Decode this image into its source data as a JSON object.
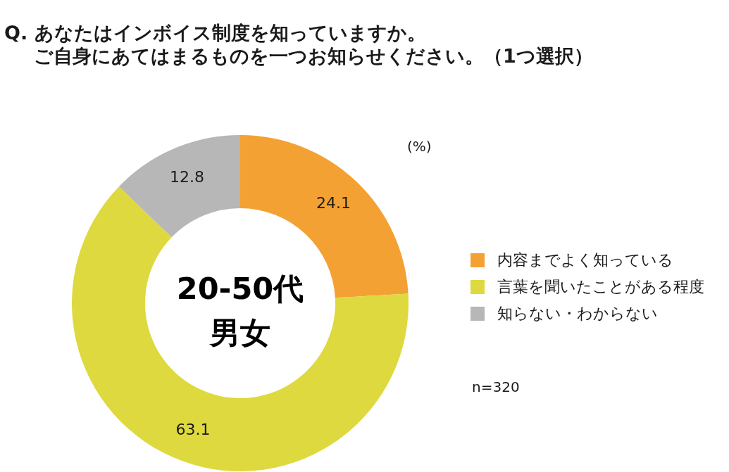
{
  "chart_data": {
    "type": "donut",
    "title": "Q. あなたはインボイス制度を知っていますか。",
    "subtitle": "ご自身にあてはまるものを一つお知らせください。（1つ選択）",
    "categories": [
      "内容までよく知っている",
      "言葉を聞いたことがある程度",
      "知らない・わからない"
    ],
    "values": [
      24.1,
      63.1,
      12.8
    ],
    "colors": [
      "#f4a133",
      "#ded93e",
      "#b7b7b7"
    ],
    "data_labels": true,
    "legend": "right",
    "annotations": [
      "20-50代男女",
      "(%)",
      "n=320"
    ]
  }
}
